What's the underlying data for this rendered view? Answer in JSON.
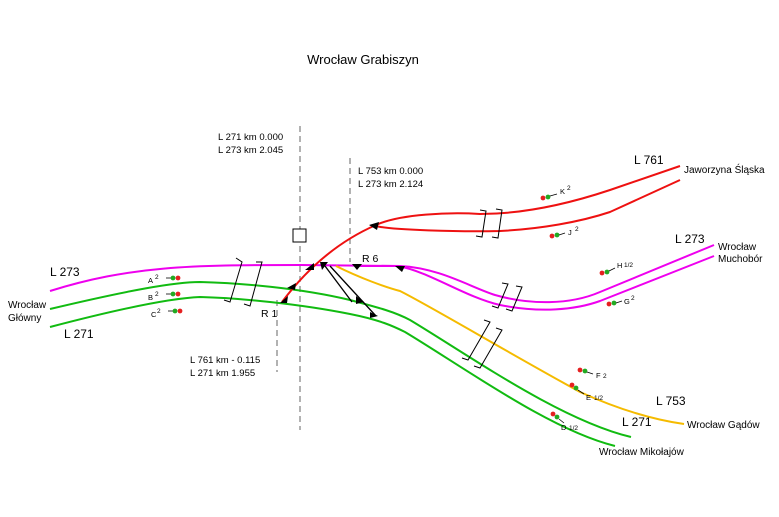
{
  "title": "Wrocław Grabiszyn",
  "colors": {
    "L761": "#ee1111",
    "L273": "#ee00ee",
    "L753": "#f5bb00",
    "L271": "#11bb11",
    "axis": "#888888",
    "signal_red": "#e52020",
    "signal_green": "#22aa22"
  },
  "line_labels": {
    "l273_west": "L 273",
    "l271_west": "L 271",
    "l761_east": "L 761",
    "l273_east": "L 273",
    "l753_east": "L 753",
    "l271_east": "L 271"
  },
  "destinations": {
    "wroclaw_glowny_1": "Wrocław",
    "wroclaw_glowny_2": "Główny",
    "jaworzyna": "Jaworzyna Śląska",
    "muchobor_1": "Wrocław",
    "muchobor_2": "Muchobór",
    "gadow": "Wrocław Gądów",
    "mikolajow": "Wrocław Mikołajów"
  },
  "km_blocks": {
    "top_left": {
      "line1": "L 271  km   0.000",
      "line2": "L 273  km   2.045"
    },
    "top_right": {
      "line1": "L 753  km   0.000",
      "line2": "L 273  km   2.124"
    },
    "bottom": {
      "line1": "L 761  km   - 0.115",
      "line2": "L 271  km      1.955"
    }
  },
  "junctions": {
    "r1": "R 1",
    "r6": "R 6"
  },
  "signals": {
    "A": {
      "letter": "A",
      "sup": "2"
    },
    "B": {
      "letter": "B",
      "sup": "2"
    },
    "C": {
      "letter": "C",
      "sup": "2"
    },
    "K": {
      "letter": "K",
      "sup": "2"
    },
    "J": {
      "letter": "J",
      "sup": "2"
    },
    "H": {
      "letter": "H",
      "sup": "1/2"
    },
    "G": {
      "letter": "G",
      "sup": "2"
    },
    "F": {
      "letter": "F",
      "sup": "2"
    },
    "E": {
      "letter": "E",
      "sup": "1/2"
    },
    "D": {
      "letter": "D",
      "sup": "1/2"
    }
  }
}
